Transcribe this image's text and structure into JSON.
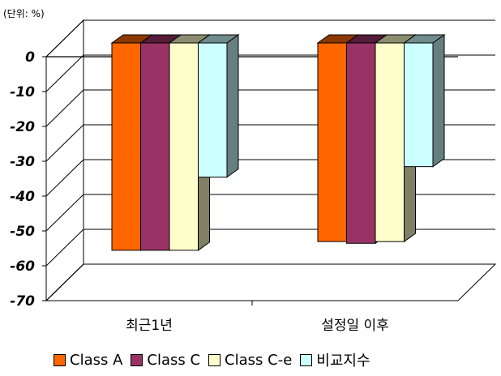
{
  "unit_note": "(단위: %)",
  "chart_data": {
    "type": "bar",
    "categories": [
      "최근1년",
      "설정일 이후"
    ],
    "series": [
      {
        "name": "Class A",
        "color": "#ff6600",
        "values": [
          -59.5,
          -57.0
        ]
      },
      {
        "name": "Class C",
        "color": "#993366",
        "values": [
          -59.5,
          -57.5
        ]
      },
      {
        "name": "Class C-e",
        "color": "#ffffcc",
        "values": [
          -59.5,
          -57.0
        ]
      },
      {
        "name": "비교지수",
        "color": "#ccffff",
        "values": [
          -38.5,
          -35.5
        ]
      }
    ],
    "ylim": [
      -70,
      0
    ],
    "yticks": [
      "0",
      "-10",
      "-20",
      "-30",
      "-40",
      "-50",
      "-60",
      "-70"
    ],
    "grid": true,
    "legend": "bottom",
    "style": "3d-column"
  }
}
